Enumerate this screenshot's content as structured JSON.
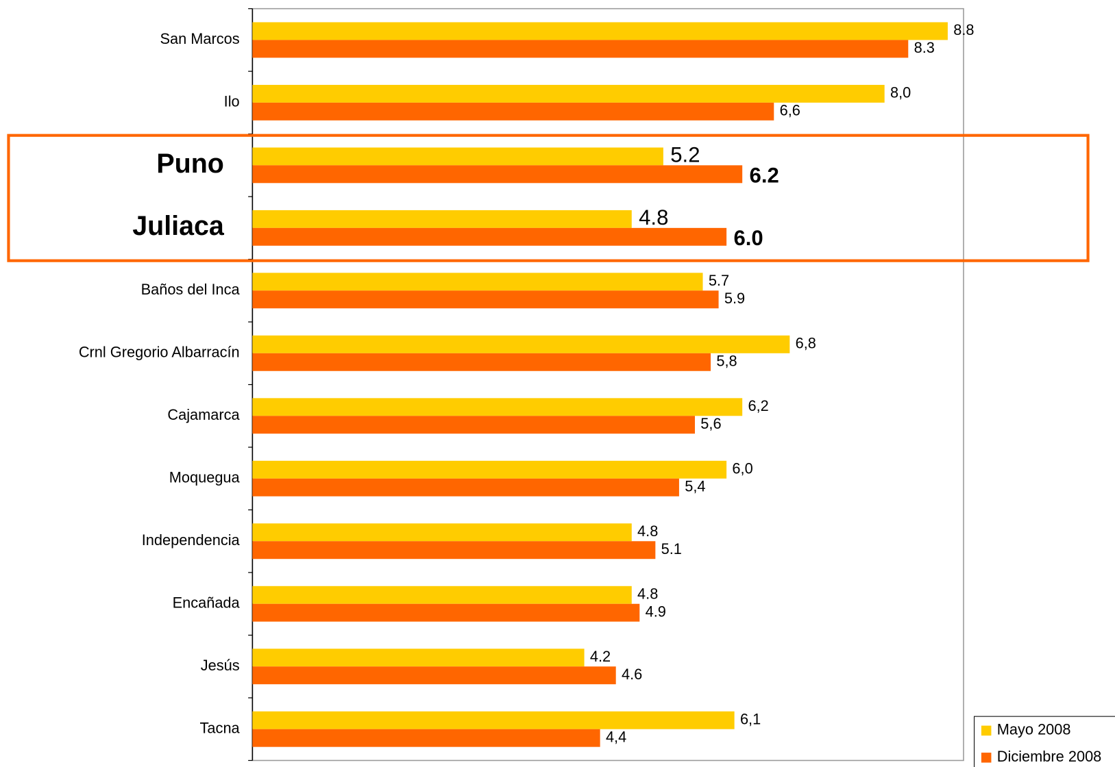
{
  "chart_data": {
    "type": "hbar",
    "categories": [
      "San Marcos",
      "Ilo",
      "Puno",
      "Juliaca",
      "Baños del Inca",
      "Crnl Gregorio Albarracín",
      "Cajamarca",
      "Moquegua",
      "Independencia",
      "Encañada",
      "Jesús",
      "Tacna"
    ],
    "series": [
      {
        "name": "Mayo 2008",
        "color": "#ffcc00",
        "values": [
          8.8,
          8.0,
          5.2,
          4.8,
          5.7,
          6.8,
          6.2,
          6.0,
          4.8,
          4.8,
          4.2,
          6.1
        ],
        "value_labels": [
          "8.8",
          "8,0",
          "5.2",
          "4.8",
          "5.7",
          "6,8",
          "6,2",
          "6,0",
          "4.8",
          "4.8",
          "4.2",
          "6,1"
        ]
      },
      {
        "name": "Diciembre 2008",
        "color": "#ff6600",
        "values": [
          8.3,
          6.6,
          6.2,
          6.0,
          5.9,
          5.8,
          5.6,
          5.4,
          5.1,
          4.9,
          4.6,
          4.4
        ],
        "value_labels": [
          "8.3",
          "6,6",
          "6.2",
          "6.0",
          "5.9",
          "5,8",
          "5,6",
          "5,4",
          "5.1",
          "4.9",
          "4.6",
          "4,4"
        ]
      }
    ],
    "xlim": [
      0,
      9
    ],
    "highlight_indices": [
      2,
      3
    ],
    "highlight_color": "#ff6600",
    "legend": "bottom-right"
  }
}
